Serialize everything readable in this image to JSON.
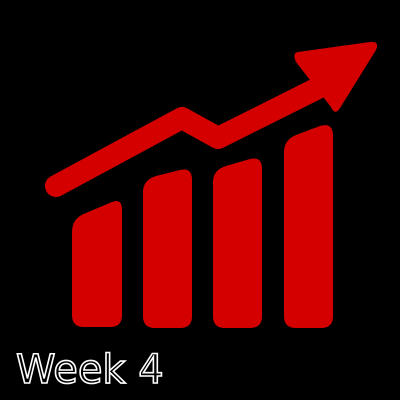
{
  "caption": "Week 4"
}
